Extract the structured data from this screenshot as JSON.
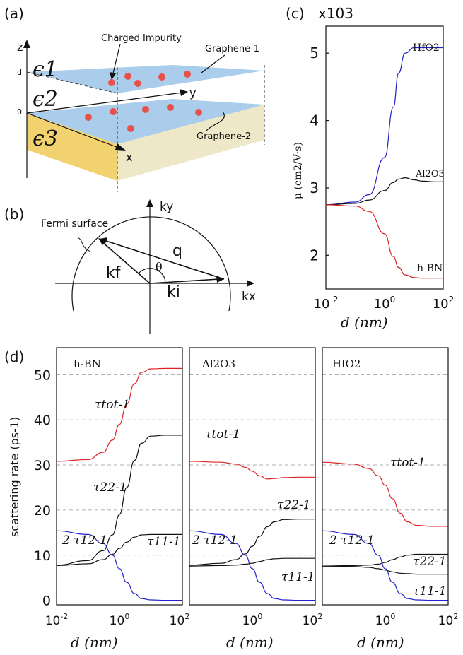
{
  "panel_labels": {
    "a": "(a)",
    "b": "(b)",
    "c": "(c)",
    "d": "(d)"
  },
  "panel_a": {
    "eps1": "ϵ1",
    "eps2": "ϵ2",
    "eps3": "ϵ3",
    "z": "z",
    "y": "y",
    "x": "x",
    "d_tick": "d",
    "zero_tick": "0",
    "impurity_label": "Charged Impurity",
    "graphene1": "Graphene-1",
    "graphene2": "Graphene-2",
    "colors": {
      "sheet": "#a9cdea",
      "sheet_dark": "#8fbde3",
      "dot": "#e8514a",
      "substrate_side": "#f2d26e",
      "substrate_top": "#eee8c8"
    }
  },
  "panel_b": {
    "ky": "ky",
    "kx": "kx",
    "kf": "kf",
    "ki": "ki",
    "q": "q",
    "theta": "θ",
    "fermi": "Fermi surface"
  },
  "chart_data": [
    {
      "id": "c",
      "type": "line",
      "x_scale": "log",
      "xlim": [
        0.01,
        100
      ],
      "ylim": [
        1500,
        5400
      ],
      "xticks": [
        "10-2",
        "100",
        "102"
      ],
      "yticks": [
        2,
        3,
        4,
        5
      ],
      "y_multiplier": "x103",
      "xlabel": "d (nm)",
      "ylabel": "μ (cm2/V·s)",
      "series": [
        {
          "name": "HfO2",
          "color": "#2222cc",
          "x": [
            0.01,
            0.1,
            0.3,
            1,
            2,
            3,
            5,
            10,
            20,
            50,
            100
          ],
          "y": [
            2750,
            2790,
            2900,
            3450,
            4200,
            4700,
            5000,
            5080,
            5080,
            5080,
            5080
          ]
        },
        {
          "name": "Al2O3",
          "color": "#111111",
          "x": [
            0.01,
            0.1,
            0.3,
            1,
            2,
            3,
            5,
            10,
            20,
            50,
            100
          ],
          "y": [
            2750,
            2770,
            2820,
            2960,
            3080,
            3130,
            3150,
            3120,
            3100,
            3090,
            3090
          ]
        },
        {
          "name": "h-BN",
          "color": "#dd2222",
          "x": [
            0.01,
            0.1,
            0.3,
            1,
            2,
            3,
            5,
            10,
            20,
            50,
            100
          ],
          "y": [
            2750,
            2730,
            2650,
            2320,
            1980,
            1820,
            1710,
            1670,
            1660,
            1660,
            1660
          ]
        }
      ]
    },
    {
      "id": "d",
      "type": "line",
      "x_scale": "log",
      "xlim": [
        0.01,
        100
      ],
      "ylim": [
        -1,
        56
      ],
      "yticks": [
        0,
        10,
        20,
        30,
        40,
        50
      ],
      "ylabel": "scattering rate (ps-1)",
      "xlabel": "d (nm)",
      "panels": [
        {
          "title": "h-BN",
          "xticks": [
            "10-2",
            "100",
            "102"
          ],
          "labels": {
            "tot": "τtot-1",
            "t22": "τ22-1",
            "t12": "2 τ12-1",
            "t11": "τ11-1"
          },
          "series": [
            {
              "name": "τtot-1",
              "color": "#dd2222",
              "x": [
                0.01,
                0.1,
                0.3,
                0.6,
                1,
                1.7,
                3,
                5,
                10,
                30,
                100
              ],
              "y": [
                30.8,
                31.2,
                32.8,
                35.5,
                39,
                43.5,
                48,
                50.5,
                51.3,
                51.4,
                51.4
              ]
            },
            {
              "name": "τ22-1",
              "color": "#111111",
              "x": [
                0.01,
                0.1,
                0.3,
                0.6,
                1,
                1.7,
                3,
                5,
                10,
                30,
                100
              ],
              "y": [
                7.8,
                8.8,
                11,
                14.5,
                19,
                25,
                31,
                34.8,
                36.4,
                36.6,
                36.6
              ]
            },
            {
              "name": "τ11-1",
              "color": "#111111",
              "x": [
                0.01,
                0.1,
                0.3,
                0.6,
                1,
                1.7,
                3,
                5,
                10,
                30,
                100
              ],
              "y": [
                7.7,
                8.1,
                9,
                10.2,
                11.5,
                12.9,
                14,
                14.5,
                14.6,
                14.6,
                14.6
              ]
            },
            {
              "name": "2 τ12-1",
              "color": "#2222cc",
              "x": [
                0.01,
                0.1,
                0.3,
                0.6,
                1,
                1.7,
                3,
                5,
                10,
                30,
                100
              ],
              "y": [
                15.4,
                14.6,
                12.6,
                10,
                7,
                4,
                1.5,
                0.4,
                0.1,
                0,
                0
              ]
            }
          ]
        },
        {
          "title": "Al2O3",
          "xticks": [
            "",
            "100",
            "102"
          ],
          "labels": {
            "tot": "τtot-1",
            "t22": "τ22-1",
            "t12": "2 τ12-1",
            "t11": "τ11-1"
          },
          "series": [
            {
              "name": "τtot-1",
              "color": "#dd2222",
              "x": [
                0.01,
                0.1,
                0.3,
                0.6,
                1,
                1.7,
                3,
                5,
                10,
                30,
                100
              ],
              "y": [
                30.8,
                30.6,
                30.2,
                29.5,
                28.6,
                27.6,
                26.9,
                27,
                27.2,
                27.3,
                27.3
              ]
            },
            {
              "name": "τ22-1",
              "color": "#111111",
              "x": [
                0.01,
                0.1,
                0.3,
                0.6,
                1,
                1.7,
                3,
                5,
                10,
                30,
                100
              ],
              "y": [
                7.8,
                8.2,
                9,
                10.3,
                12,
                14.2,
                16.3,
                17.4,
                17.9,
                18,
                18
              ]
            },
            {
              "name": "τ11-1",
              "color": "#111111",
              "x": [
                0.01,
                0.1,
                0.3,
                0.6,
                1,
                1.7,
                3,
                5,
                10,
                30,
                100
              ],
              "y": [
                7.6,
                7.7,
                7.8,
                8,
                8.2,
                8.6,
                9,
                9.2,
                9.3,
                9.3,
                9.3
              ]
            },
            {
              "name": "2 τ12-1",
              "color": "#2222cc",
              "x": [
                0.01,
                0.1,
                0.3,
                0.6,
                1,
                1.7,
                3,
                5,
                10,
                30,
                100
              ],
              "y": [
                15.4,
                14.6,
                12.6,
                10,
                7,
                4,
                1.5,
                0.4,
                0.1,
                0,
                0
              ]
            }
          ]
        },
        {
          "title": "HfO2",
          "xticks": [
            "",
            "100",
            "102"
          ],
          "labels": {
            "tot": "τtot-1",
            "t22": "τ22-1",
            "t12": "2 τ12-1",
            "t11": "τ11-1"
          },
          "series": [
            {
              "name": "τtot-1",
              "color": "#dd2222",
              "x": [
                0.01,
                0.1,
                0.3,
                0.6,
                1,
                1.7,
                3,
                5,
                10,
                30,
                100
              ],
              "y": [
                30.6,
                30.2,
                29.2,
                27.6,
                25.5,
                22.5,
                19.3,
                17.4,
                16.6,
                16.4,
                16.4
              ]
            },
            {
              "name": "τ22-1",
              "color": "#111111",
              "x": [
                0.01,
                0.1,
                0.3,
                0.6,
                1,
                1.7,
                3,
                5,
                10,
                30,
                100
              ],
              "y": [
                7.6,
                7.7,
                7.8,
                8,
                8.4,
                9,
                9.6,
                10,
                10.2,
                10.2,
                10.2
              ]
            },
            {
              "name": "τ11-1",
              "color": "#111111",
              "x": [
                0.01,
                0.1,
                0.3,
                0.6,
                1,
                1.7,
                3,
                5,
                10,
                30,
                100
              ],
              "y": [
                7.6,
                7.5,
                7.3,
                7,
                6.7,
                6.3,
                6,
                5.9,
                5.8,
                5.8,
                5.8
              ]
            },
            {
              "name": "2 τ12-1",
              "color": "#2222cc",
              "x": [
                0.01,
                0.1,
                0.3,
                0.6,
                1,
                1.7,
                3,
                5,
                10,
                30,
                100
              ],
              "y": [
                15.4,
                14.6,
                12.6,
                10,
                7,
                4,
                1.5,
                0.4,
                0.1,
                0,
                0
              ]
            }
          ]
        }
      ]
    }
  ]
}
